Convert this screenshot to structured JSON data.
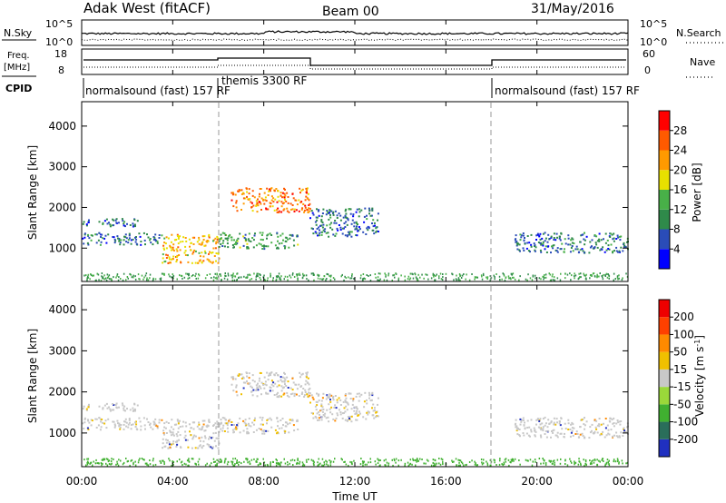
{
  "header": {
    "title": "Adak West (fitACF)",
    "beam": "Beam 00",
    "date": "31/May/2016"
  },
  "noise_panel": {
    "left_label": "N.Sky",
    "right_label": "N.Search",
    "left_ticks": [
      "10^5",
      "10^0"
    ],
    "right_ticks": [
      "10^5",
      "10^0"
    ]
  },
  "freq_panel": {
    "left_label_1": "Freq.",
    "left_label_2": "[MHz]",
    "left_ticks": [
      "18",
      "8"
    ],
    "right_label": "Nave",
    "right_ticks": [
      "60",
      "0"
    ]
  },
  "cpid": {
    "label": "CPID",
    "segments": [
      {
        "start_hour": 0,
        "text": "normalsound (fast) 157 RF"
      },
      {
        "start_hour": 6,
        "text": "themis 3300 RF"
      },
      {
        "start_hour": 18,
        "text": "normalsound (fast) 157 RF"
      }
    ]
  },
  "power_panel": {
    "ylabel": "Slant Range [km]",
    "yticks": [
      "4000",
      "3000",
      "2000",
      "1000"
    ],
    "colorbar_label": "Power [dB]",
    "colorbar_ticks": [
      "28",
      "24",
      "20",
      "16",
      "12",
      "8",
      "4"
    ],
    "colorbar_colors": [
      "#0000ff",
      "#2a4cb8",
      "#2f8a4a",
      "#48b048",
      "#e8e000",
      "#ff9a00",
      "#ff5a00",
      "#ff0000"
    ]
  },
  "velocity_panel": {
    "ylabel": "Slant Range [km]",
    "yticks": [
      "4000",
      "3000",
      "2000",
      "1000"
    ],
    "colorbar_label": "Velocity [m s",
    "colorbar_sup": "-1",
    "colorbar_label_end": "]",
    "colorbar_ticks": [
      "200",
      "100",
      "50",
      "15",
      "-15",
      "-50",
      "-100",
      "-200"
    ],
    "colorbar_colors": [
      "#2030c0",
      "#2a6e5a",
      "#40b030",
      "#9ad83a",
      "#c8c8c8",
      "#f0c000",
      "#ff8a00",
      "#ff4000",
      "#ee0000"
    ]
  },
  "xaxis": {
    "label": "Time UT",
    "ticks": [
      "00:00",
      "04:00",
      "08:00",
      "12:00",
      "16:00",
      "20:00",
      "00:00"
    ]
  },
  "chart_data": {
    "type": "heatmap",
    "x_range_hours": [
      0,
      24
    ],
    "y_range_km": [
      180,
      4600
    ],
    "power_echo_regions": [
      {
        "t_start": 0.0,
        "t_end": 2.5,
        "range_min": 1550,
        "range_max": 1750,
        "power_db": 8
      },
      {
        "t_start": 0.0,
        "t_end": 3.5,
        "range_min": 1100,
        "range_max": 1400,
        "power_db": 8
      },
      {
        "t_start": 3.5,
        "t_end": 6.0,
        "range_min": 650,
        "range_max": 1350,
        "power_db": 20
      },
      {
        "t_start": 6.0,
        "t_end": 9.5,
        "range_min": 1000,
        "range_max": 1400,
        "power_db": 12
      },
      {
        "t_start": 6.5,
        "t_end": 10.0,
        "range_min": 1900,
        "range_max": 2500,
        "power_db": 24
      },
      {
        "t_start": 10.0,
        "t_end": 13.0,
        "range_min": 1300,
        "range_max": 2000,
        "power_db": 8
      },
      {
        "t_start": 19.0,
        "t_end": 24.0,
        "range_min": 900,
        "range_max": 1400,
        "power_db": 8
      }
    ],
    "velocity_dominant_bin": "-15 to 15"
  }
}
